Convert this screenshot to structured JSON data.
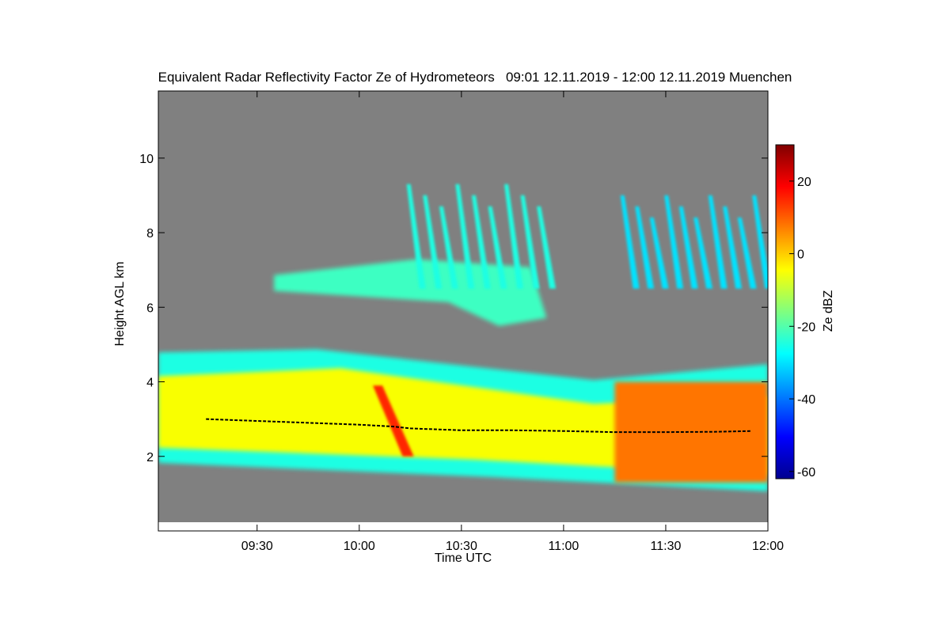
{
  "chart_data": {
    "type": "heatmap",
    "title": "Equivalent Radar Reflectivity Factor Ze of Hydrometeors   09:01 12.11.2019 - 12:00 12.11.2019 Muenchen",
    "xlabel": "Time UTC",
    "ylabel": "Height AGL km",
    "x_range": [
      "09:01",
      "12:00"
    ],
    "x_ticks": [
      "09:30",
      "10:00",
      "10:30",
      "11:00",
      "11:30",
      "12:00"
    ],
    "y_range": [
      0,
      11.8
    ],
    "y_ticks": [
      2,
      4,
      6,
      8,
      10
    ],
    "colorbar": {
      "label": "Ze dBZ",
      "range": [
        -62,
        30
      ],
      "ticks": [
        -60,
        -40,
        -20,
        0,
        20
      ]
    },
    "background_color": "#808080",
    "features": [
      {
        "name": "main precipitation layer",
        "time_start": "09:01",
        "time_end": "12:00",
        "bottom_km": 1.7,
        "top_km": 5.0,
        "ze_dbz": -5
      },
      {
        "name": "upper cloud layer",
        "time_start": "09:35",
        "time_end": "10:55",
        "bottom_km": 5.5,
        "top_km": 7.5,
        "ze_dbz": -22
      },
      {
        "name": "fall streaks",
        "time_start": "10:12",
        "time_end": "10:55",
        "bottom_km": 6.5,
        "top_km": 9.3,
        "ze_dbz": -25
      },
      {
        "name": "upper fall streaks",
        "time_start": "11:15",
        "time_end": "11:58",
        "bottom_km": 6.5,
        "top_km": 9.0,
        "ze_dbz": -30
      },
      {
        "name": "intense streak",
        "time_start": "10:04",
        "time_end": "10:16",
        "bottom_km": 2.0,
        "top_km": 3.9,
        "ze_dbz": 15
      },
      {
        "name": "strong precipitation",
        "time_start": "11:15",
        "time_end": "12:00",
        "bottom_km": 1.3,
        "top_km": 4.0,
        "ze_dbz": 8
      }
    ],
    "melting_layer": {
      "x": [
        "09:15",
        "09:30",
        "09:45",
        "10:00",
        "10:10",
        "10:15",
        "10:30",
        "10:45",
        "11:00",
        "11:15",
        "11:30",
        "11:45",
        "11:55"
      ],
      "y": [
        3.0,
        2.95,
        2.9,
        2.85,
        2.8,
        2.75,
        2.7,
        2.7,
        2.68,
        2.65,
        2.65,
        2.66,
        2.68
      ]
    }
  }
}
